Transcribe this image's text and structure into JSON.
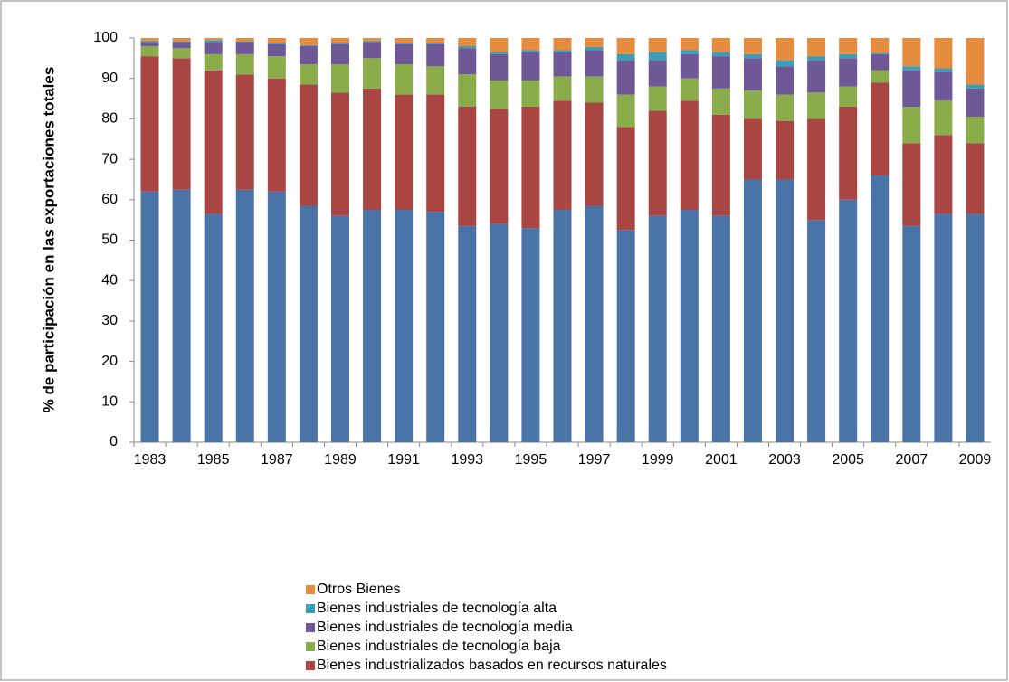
{
  "chart_data": {
    "type": "stacked-bar",
    "y_label": "% de participación en las exportaciones totales",
    "categories": [
      "1983",
      null,
      "1985",
      null,
      "1987",
      null,
      "1989",
      null,
      "1991",
      null,
      "1993",
      null,
      "1995",
      null,
      "1997",
      null,
      "1999",
      null,
      "2001",
      null,
      "2003",
      null,
      "2005",
      null,
      "2007",
      null,
      "2009"
    ],
    "ylim": [
      0,
      100
    ],
    "yticks": [
      0,
      10,
      20,
      30,
      40,
      50,
      60,
      70,
      80,
      90,
      100
    ],
    "series": [
      {
        "color": "#4a74a8",
        "values": [
          62,
          62.5,
          56.5,
          62.5,
          62,
          58.5,
          56,
          57.5,
          57.5,
          57,
          53.5,
          54,
          53,
          57.5,
          58.5,
          52.5,
          56,
          57.5,
          56,
          65,
          65,
          55,
          60,
          66,
          53.5,
          56.5,
          56.5
        ]
      },
      {
        "name": "Bienes industrializados basados en recursos naturales",
        "color": "#a94643",
        "values": [
          33.5,
          32.5,
          35.5,
          28.5,
          28,
          30,
          30.5,
          30,
          28.5,
          29,
          29.5,
          28.5,
          30,
          27,
          25.5,
          25.5,
          26,
          27,
          25,
          15,
          14.5,
          25,
          23,
          23,
          20.5,
          19.5,
          17.5
        ]
      },
      {
        "name": "Bienes industriales de tecnología baja",
        "color": "#8aac4a",
        "values": [
          2.5,
          2.5,
          4,
          5,
          5.5,
          5,
          7,
          7.5,
          7.5,
          7,
          8,
          7,
          6.5,
          6,
          6.5,
          8,
          6,
          5.5,
          6.5,
          7,
          6.5,
          6.5,
          5,
          3,
          9,
          8.5,
          6.5
        ]
      },
      {
        "name": "Bienes industriales de tecnología media",
        "color": "#6e5896",
        "values": [
          1,
          1.5,
          3,
          3,
          3,
          4.5,
          5,
          4,
          5,
          5.5,
          6.5,
          6.5,
          7,
          6,
          6.5,
          8.5,
          6.5,
          6,
          8,
          8,
          7,
          8,
          7,
          4,
          9,
          7,
          7
        ]
      },
      {
        "name": "Bienes industriales de tecnología alta",
        "color": "#3d9cb8",
        "values": [
          0.3,
          0.2,
          0.5,
          0.2,
          0.2,
          0.2,
          0.2,
          0.3,
          0.2,
          0.2,
          0.5,
          0.5,
          0.5,
          0.5,
          0.8,
          1.5,
          2,
          1,
          1,
          1,
          1.5,
          1,
          1,
          0.3,
          1,
          1,
          1
        ]
      },
      {
        "name": "Otros Bienes",
        "color": "#e58c3f",
        "values": [
          0.7,
          0.8,
          0.5,
          0.8,
          1.3,
          1.8,
          1.3,
          0.7,
          1.3,
          1.3,
          2,
          3.5,
          3,
          3,
          2.2,
          4,
          3.5,
          3,
          3.5,
          4,
          5.5,
          4.5,
          4,
          3.7,
          7,
          7.5,
          11.5
        ]
      }
    ]
  }
}
